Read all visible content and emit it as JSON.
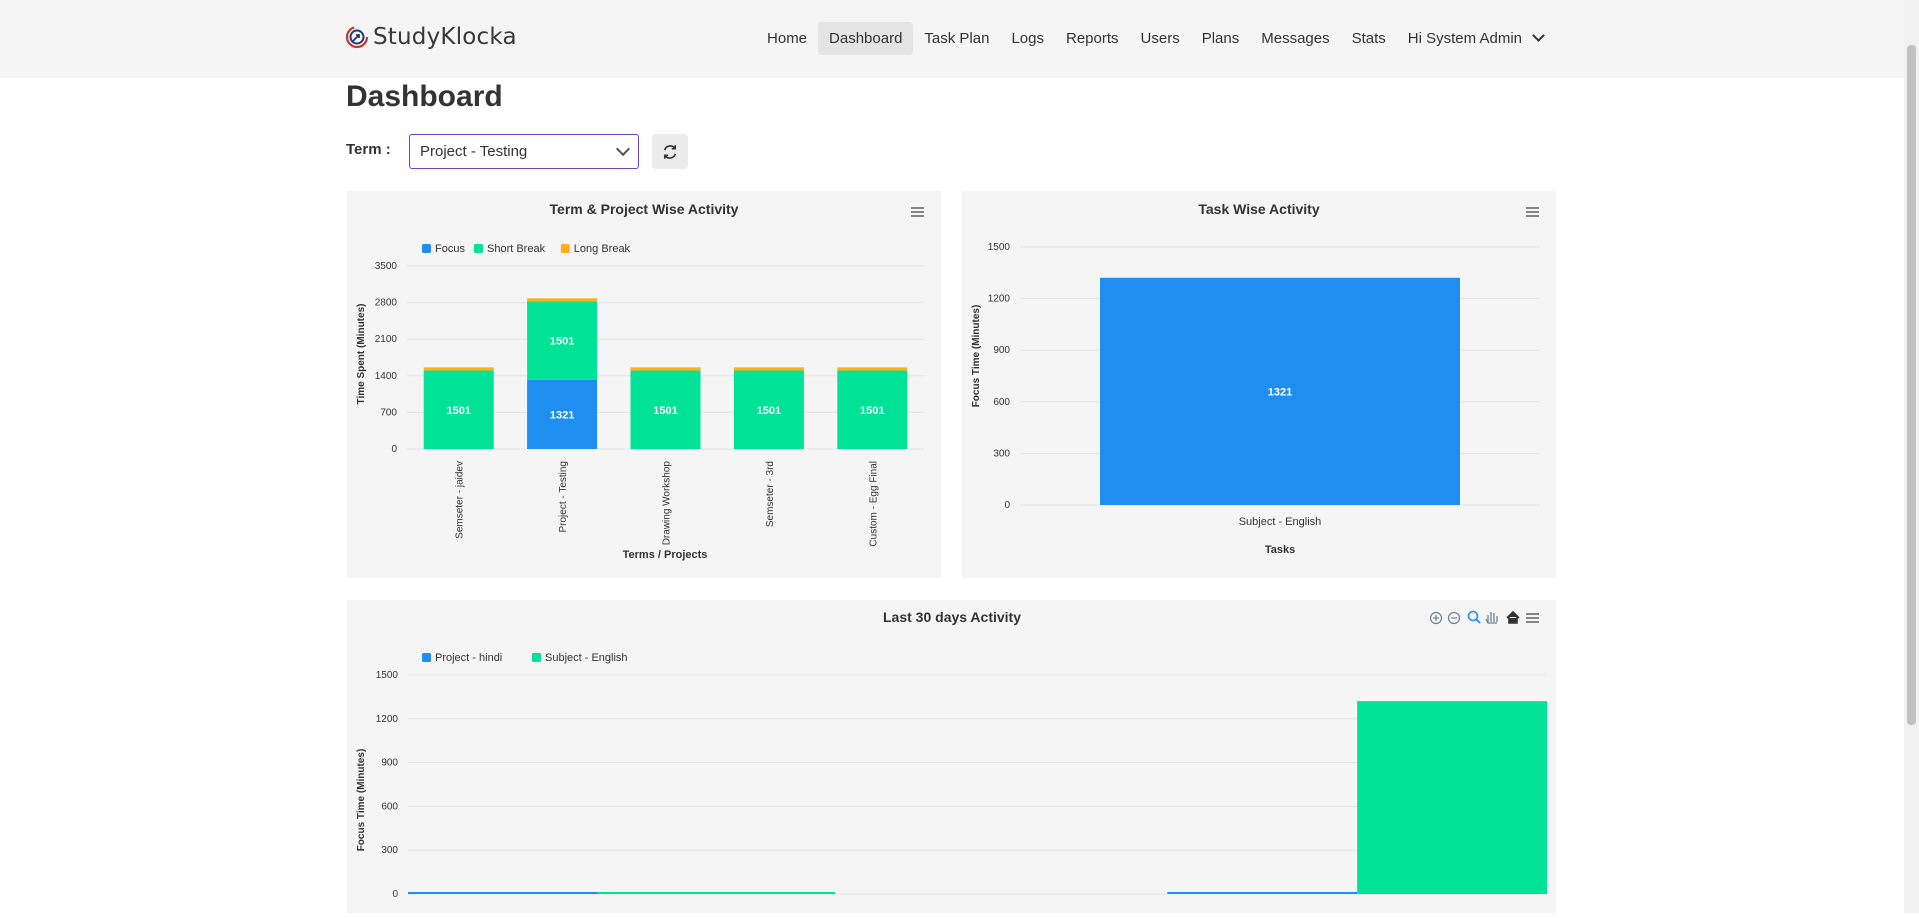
{
  "brand": {
    "name": "StudyKlocka"
  },
  "nav": {
    "items": [
      "Home",
      "Dashboard",
      "Task Plan",
      "Logs",
      "Reports",
      "Users",
      "Plans",
      "Messages",
      "Stats"
    ],
    "active": "Dashboard",
    "user_label": "Hi System Admin"
  },
  "page": {
    "title": "Dashboard"
  },
  "term": {
    "label": "Term :",
    "selected": "Project - Testing"
  },
  "colors": {
    "focus": "#1f8ef1",
    "short_break": "#00e396",
    "long_break": "#feb019",
    "panel_bg": "#f5f5f5"
  },
  "chart_data": [
    {
      "type": "bar",
      "stacked": true,
      "title": "Term & Project Wise Activity",
      "xlabel": "Terms / Projects",
      "ylabel": "Time Spent (Minutes)",
      "ylim": [
        0,
        3500
      ],
      "yticks": [
        "0",
        "700",
        "1400",
        "2100",
        "2800",
        "3500"
      ],
      "legend_position": "top-left",
      "categories": [
        "Semseter - jaidev",
        "Project - Testing",
        "Drawing Workshop",
        "Semseter - 3rd",
        "Custom - Egg Final"
      ],
      "series": [
        {
          "name": "Focus",
          "color": "#1f8ef1",
          "values": [
            0,
            1321,
            0,
            0,
            0
          ]
        },
        {
          "name": "Short Break",
          "color": "#00e396",
          "values": [
            1501,
            1501,
            1501,
            1501,
            1501
          ]
        },
        {
          "name": "Long Break",
          "color": "#feb019",
          "values": [
            60,
            60,
            60,
            60,
            60
          ]
        }
      ]
    },
    {
      "type": "bar",
      "title": "Task Wise Activity",
      "xlabel": "Tasks",
      "ylabel": "Focus Time (Minutes)",
      "ylim": [
        0,
        1500
      ],
      "yticks": [
        "0",
        "300",
        "600",
        "900",
        "1200",
        "1500"
      ],
      "categories": [
        "Subject - English"
      ],
      "series": [
        {
          "color": "#1f8ef1",
          "values": [
            1321
          ]
        }
      ]
    },
    {
      "type": "bar",
      "title": "Last 30 days Activity",
      "ylabel": "Focus Time (Minutes)",
      "ylim": [
        0,
        1500
      ],
      "yticks": [
        "0",
        "300",
        "600",
        "900",
        "1200",
        "1500"
      ],
      "legend_position": "top-left",
      "series": [
        {
          "name": "Project - hindi",
          "color": "#1f8ef1",
          "bars": [
            {
              "from": 0,
              "to": 4,
              "value": 8
            },
            {
              "from": 16,
              "to": 20,
              "value": 8
            }
          ]
        },
        {
          "name": "Subject - English",
          "color": "#00e396",
          "bars": [
            {
              "from": 4,
              "to": 9,
              "value": 8
            },
            {
              "from": 20,
              "to": 24,
              "value": 1321
            }
          ]
        }
      ]
    }
  ]
}
